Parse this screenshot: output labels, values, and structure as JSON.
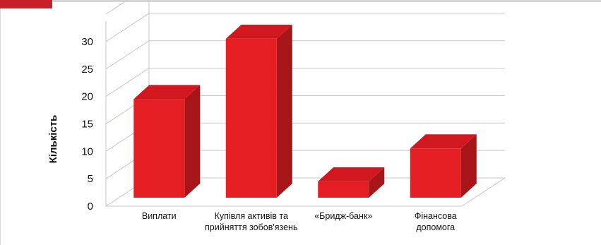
{
  "chart_data": {
    "type": "bar",
    "categories": [
      [
        "Виплати"
      ],
      [
        "Купівля активів та",
        "прийняття зобов'язень"
      ],
      [
        "«Бридж-банк»"
      ],
      [
        "Фінансова",
        "допомога"
      ]
    ],
    "values": [
      19,
      30,
      4,
      10
    ],
    "title": "",
    "xlabel": "",
    "ylabel": "Кількість",
    "ylim": [
      0,
      30
    ],
    "yticks": [
      0,
      5,
      10,
      15,
      20,
      25,
      30
    ],
    "grid": true,
    "bar_style": "3d",
    "colors": {
      "bar_front": "#e51e24",
      "bar_top": "#d1181e",
      "bar_side": "#a71519",
      "accent": "#c8202a",
      "grid": "#c8c8c8"
    }
  }
}
